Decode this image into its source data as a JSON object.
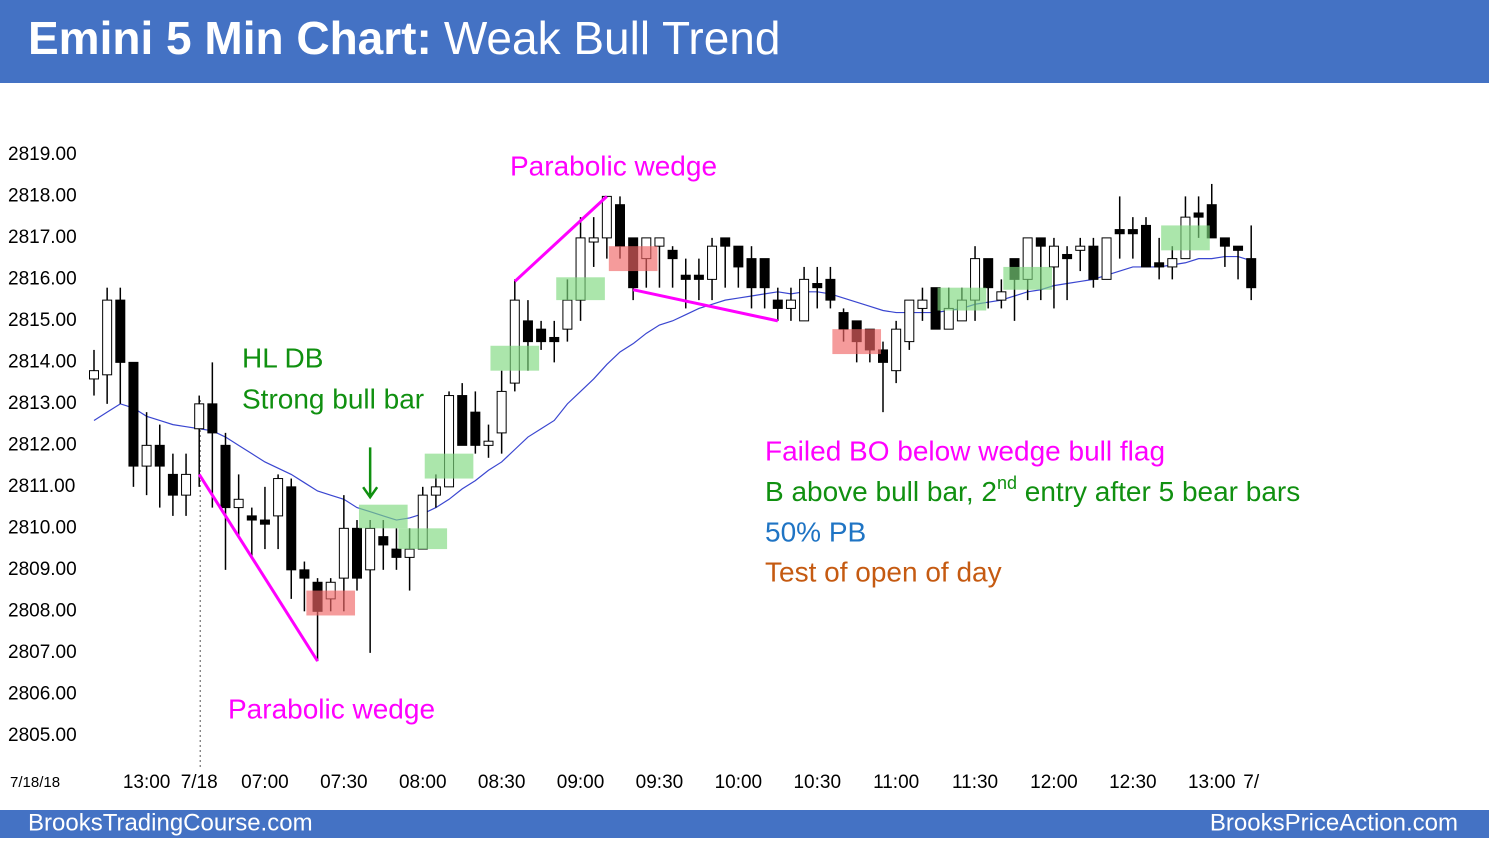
{
  "chart_data": {
    "type": "candlestick",
    "title_bold": "Emini 5 Min Chart:",
    "title_rest": "Weak Bull Trend",
    "date_label": "7/18/18",
    "categories": [
      null,
      null,
      null,
      null,
      "13:00",
      null,
      null,
      null,
      "7/18",
      null,
      null,
      null,
      null,
      "07:00",
      null,
      null,
      null,
      null,
      null,
      "07:30",
      null,
      null,
      null,
      null,
      null,
      "08:00",
      null,
      null,
      null,
      null,
      null,
      "08:30",
      null,
      null,
      null,
      null,
      null,
      "09:00",
      null,
      null,
      null,
      null,
      null,
      "09:30",
      null,
      null,
      null,
      null,
      null,
      "10:00",
      null,
      null,
      null,
      null,
      null,
      "10:30",
      null,
      null,
      null,
      null,
      null,
      "11:00",
      null,
      null,
      null,
      null,
      null,
      "11:30",
      null,
      null,
      null,
      null,
      null,
      "12:00",
      null,
      null,
      null,
      null,
      null,
      "12:30",
      null,
      null,
      null,
      null,
      null,
      "13:00",
      null,
      null,
      "7/"
    ],
    "open": [
      2813.6,
      2813.7,
      2815.5,
      2814.0,
      2811.5,
      2812.0,
      2811.3,
      2810.8,
      2812.4,
      2813.0,
      2812.0,
      2810.5,
      2810.3,
      2810.2,
      2810.3,
      2811.0,
      2809.0,
      2808.7,
      2808.3,
      2808.8,
      2810.0,
      2809.0,
      2809.8,
      2809.5,
      2809.3,
      2809.5,
      2810.8,
      2811.0,
      2813.2,
      2812.8,
      2812.0,
      2812.3,
      2813.5,
      2815.0,
      2814.8,
      2814.6,
      2814.8,
      2815.5,
      2816.9,
      2817.0,
      2817.8,
      2817.0,
      2816.5,
      2816.8,
      2816.7,
      2816.1,
      2816.1,
      2816.0,
      2817.0,
      2816.8,
      2816.5,
      2816.5,
      2815.5,
      2815.3,
      2815.0,
      2815.9,
      2816.0,
      2815.2,
      2815.0,
      2814.8,
      2814.3,
      2813.8,
      2814.5,
      2815.3,
      2815.8,
      2814.8,
      2815.0,
      2815.5,
      2816.5,
      2815.5,
      2816.5,
      2816.0,
      2817.0,
      2816.3,
      2816.6,
      2816.7,
      2816.8,
      2816.0,
      2817.2,
      2817.2,
      2817.3,
      2816.4,
      2816.3,
      2816.5,
      2817.6,
      2817.8,
      2817.0,
      2816.8,
      2816.5
    ],
    "high": [
      2814.3,
      2815.8,
      2815.8,
      2814.0,
      2812.8,
      2812.5,
      2811.8,
      2811.8,
      2813.2,
      2814.0,
      2812.3,
      2811.3,
      2810.5,
      2811.0,
      2811.3,
      2811.2,
      2809.2,
      2808.8,
      2808.8,
      2810.8,
      2810.2,
      2810.2,
      2810.2,
      2810.0,
      2810.0,
      2811.0,
      2811.3,
      2813.3,
      2813.5,
      2813.3,
      2812.5,
      2813.8,
      2816.0,
      2815.5,
      2815.0,
      2815.0,
      2816.0,
      2817.5,
      2817.5,
      2818.0,
      2818.0,
      2817.0,
      2817.0,
      2817.0,
      2816.8,
      2816.5,
      2816.5,
      2817.0,
      2817.0,
      2816.8,
      2816.8,
      2816.5,
      2815.8,
      2815.8,
      2816.3,
      2816.3,
      2816.3,
      2815.3,
      2815.0,
      2814.8,
      2814.5,
      2815.0,
      2815.5,
      2815.8,
      2815.8,
      2815.8,
      2815.8,
      2816.8,
      2816.5,
      2816.0,
      2816.5,
      2817.0,
      2817.0,
      2817.0,
      2816.8,
      2817.0,
      2817.0,
      2817.0,
      2818.0,
      2817.5,
      2817.5,
      2817.0,
      2816.8,
      2818.0,
      2818.0,
      2818.3,
      2817.0,
      2816.8,
      2817.3
    ],
    "low": [
      2813.2,
      2813.0,
      2813.0,
      2811.0,
      2810.8,
      2810.5,
      2810.3,
      2810.3,
      2811.0,
      2810.5,
      2809.0,
      2809.8,
      2809.3,
      2809.5,
      2809.5,
      2808.3,
      2808.0,
      2806.8,
      2808.0,
      2808.0,
      2808.5,
      2807.0,
      2809.0,
      2809.0,
      2808.5,
      2809.5,
      2810.5,
      2811.0,
      2812.0,
      2811.8,
      2811.7,
      2811.8,
      2813.3,
      2813.8,
      2814.3,
      2814.0,
      2814.5,
      2815.0,
      2816.3,
      2816.5,
      2816.5,
      2815.5,
      2815.8,
      2815.8,
      2815.8,
      2815.3,
      2815.5,
      2815.5,
      2815.8,
      2815.8,
      2815.3,
      2815.3,
      2815.0,
      2815.0,
      2815.0,
      2815.3,
      2815.3,
      2814.5,
      2814.0,
      2814.0,
      2812.8,
      2813.5,
      2814.3,
      2815.0,
      2814.8,
      2814.8,
      2815.0,
      2815.0,
      2815.3,
      2815.3,
      2815.0,
      2815.5,
      2815.5,
      2815.3,
      2815.5,
      2816.2,
      2815.8,
      2816.0,
      2816.5,
      2816.5,
      2816.3,
      2816.0,
      2816.0,
      2816.5,
      2817.0,
      2817.0,
      2816.3,
      2816.0,
      2815.5
    ],
    "close": [
      2813.8,
      2815.5,
      2814.0,
      2811.5,
      2812.0,
      2811.5,
      2810.8,
      2811.3,
      2813.0,
      2812.3,
      2810.5,
      2810.7,
      2810.2,
      2810.1,
      2811.2,
      2809.0,
      2808.8,
      2808.0,
      2808.7,
      2810.0,
      2808.8,
      2810.0,
      2809.6,
      2809.3,
      2809.5,
      2810.8,
      2811.0,
      2813.2,
      2812.0,
      2812.0,
      2812.1,
      2813.3,
      2815.5,
      2814.5,
      2814.5,
      2814.5,
      2815.5,
      2817.0,
      2817.0,
      2818.0,
      2816.8,
      2815.8,
      2817.0,
      2817.0,
      2816.5,
      2816.0,
      2816.0,
      2816.8,
      2816.8,
      2816.3,
      2815.8,
      2815.8,
      2815.3,
      2815.5,
      2816.0,
      2815.8,
      2815.5,
      2814.8,
      2814.5,
      2814.3,
      2814.0,
      2814.8,
      2815.5,
      2815.5,
      2814.8,
      2815.3,
      2815.5,
      2816.5,
      2815.8,
      2815.7,
      2816.0,
      2817.0,
      2816.8,
      2816.8,
      2816.5,
      2816.8,
      2816.0,
      2817.0,
      2817.1,
      2817.1,
      2816.3,
      2816.3,
      2816.5,
      2817.5,
      2817.5,
      2817.0,
      2816.8,
      2816.7,
      2815.8
    ],
    "up_color": "#ffffff",
    "down_color": "#000000",
    "moving_average": {
      "color": "#3a46d0",
      "values": [
        2812.6,
        2812.8,
        2813.0,
        2812.9,
        2812.7,
        2812.6,
        2812.5,
        2812.45,
        2812.4,
        2812.35,
        2812.2,
        2812.0,
        2811.8,
        2811.6,
        2811.45,
        2811.3,
        2811.1,
        2810.9,
        2810.8,
        2810.7,
        2810.5,
        2810.4,
        2810.3,
        2810.2,
        2810.25,
        2810.35,
        2810.5,
        2810.7,
        2810.95,
        2811.15,
        2811.4,
        2811.6,
        2811.9,
        2812.2,
        2812.4,
        2812.6,
        2813.0,
        2813.3,
        2813.6,
        2813.95,
        2814.25,
        2814.45,
        2814.7,
        2814.9,
        2815.0,
        2815.15,
        2815.3,
        2815.4,
        2815.5,
        2815.55,
        2815.6,
        2815.65,
        2815.7,
        2815.65,
        2815.7,
        2815.7,
        2815.65,
        2815.55,
        2815.45,
        2815.35,
        2815.25,
        2815.2,
        2815.2,
        2815.2,
        2815.2,
        2815.25,
        2815.3,
        2815.4,
        2815.45,
        2815.5,
        2815.6,
        2815.7,
        2815.75,
        2815.85,
        2815.9,
        2815.95,
        2816.0,
        2816.1,
        2816.2,
        2816.3,
        2816.3,
        2816.3,
        2816.35,
        2816.4,
        2816.5,
        2816.5,
        2816.55,
        2816.55,
        2816.45
      ]
    },
    "ylim": [
      2804.2,
      2819.6
    ],
    "yticks": [
      {
        "value": 2805,
        "label": "2805.00"
      },
      {
        "value": 2806,
        "label": "2806.00"
      },
      {
        "value": 2807,
        "label": "2807.00"
      },
      {
        "value": 2808,
        "label": "2808.00"
      },
      {
        "value": 2809,
        "label": "2809.00"
      },
      {
        "value": 2810,
        "label": "2810.00"
      },
      {
        "value": 2811,
        "label": "2811.00"
      },
      {
        "value": 2812,
        "label": "2812.00"
      },
      {
        "value": 2813,
        "label": "2813.00"
      },
      {
        "value": 2814,
        "label": "2814.00"
      },
      {
        "value": 2815,
        "label": "2815.00"
      },
      {
        "value": 2816,
        "label": "2816.00"
      },
      {
        "value": 2817,
        "label": "2817.00"
      },
      {
        "value": 2818,
        "label": "2818.00"
      },
      {
        "value": 2819,
        "label": "2819.00"
      }
    ],
    "grid": false,
    "session_start": 8,
    "highlights": [
      {
        "color": "#7ed87e",
        "index": 22,
        "low": 2810.0,
        "high": 2810.57
      },
      {
        "color": "#7ed87e",
        "index": 25,
        "low": 2809.5,
        "high": 2810.0
      },
      {
        "color": "#7ed87e",
        "index": 27,
        "low": 2811.2,
        "high": 2811.8
      },
      {
        "color": "#7ed87e",
        "index": 32,
        "low": 2813.8,
        "high": 2814.4
      },
      {
        "color": "#7ed87e",
        "index": 37,
        "low": 2815.5,
        "high": 2816.05
      },
      {
        "color": "#7ed87e",
        "index": 66,
        "low": 2815.25,
        "high": 2815.8
      },
      {
        "color": "#7ed87e",
        "index": 71,
        "low": 2815.75,
        "high": 2816.3
      },
      {
        "color": "#7ed87e",
        "index": 83,
        "low": 2816.7,
        "high": 2817.3
      },
      {
        "color": "#f06666",
        "index": 18,
        "low": 2807.9,
        "high": 2808.5
      },
      {
        "color": "#f06666",
        "index": 41,
        "low": 2816.2,
        "high": 2816.8
      },
      {
        "color": "#f06666",
        "index": 58,
        "low": 2814.2,
        "high": 2814.8
      }
    ],
    "lines": [
      {
        "color": "#ff00ff",
        "x": [
          8,
          17
        ],
        "y": [
          2811.3,
          2806.8
        ]
      },
      {
        "color": "#ff00ff",
        "x": [
          32,
          39
        ],
        "y": [
          2815.95,
          2818.0
        ]
      },
      {
        "color": "#ff00ff",
        "x": [
          41,
          52
        ],
        "y": [
          2815.75,
          2815.0
        ]
      }
    ],
    "arrows": [
      {
        "color": "#109010",
        "x": 21,
        "y": [
          2811.95,
          2810.75
        ]
      }
    ],
    "annotations": [
      {
        "text": "Parabolic wedge",
        "color": "#ff00ff"
      },
      {
        "text": "HL DB",
        "color": "#109010"
      },
      {
        "text": "Strong bull bar",
        "color": "#109010"
      },
      {
        "text": "Parabolic wedge",
        "color": "#ff00ff"
      },
      {
        "text": "Failed BO below wedge bull flag",
        "color": "#ff00ff"
      },
      {
        "text": "B above bull bar, 2",
        "superscript": "nd",
        "text_after": " entry after 5 bear bars",
        "color": "#109010"
      },
      {
        "text": "50% PB",
        "color": "#1f74c4"
      },
      {
        "text": "Test of open of day",
        "color": "#c55a11"
      }
    ]
  },
  "footer": {
    "left": "BrooksTradingCourse.com",
    "right": "BrooksPriceAction.com"
  }
}
